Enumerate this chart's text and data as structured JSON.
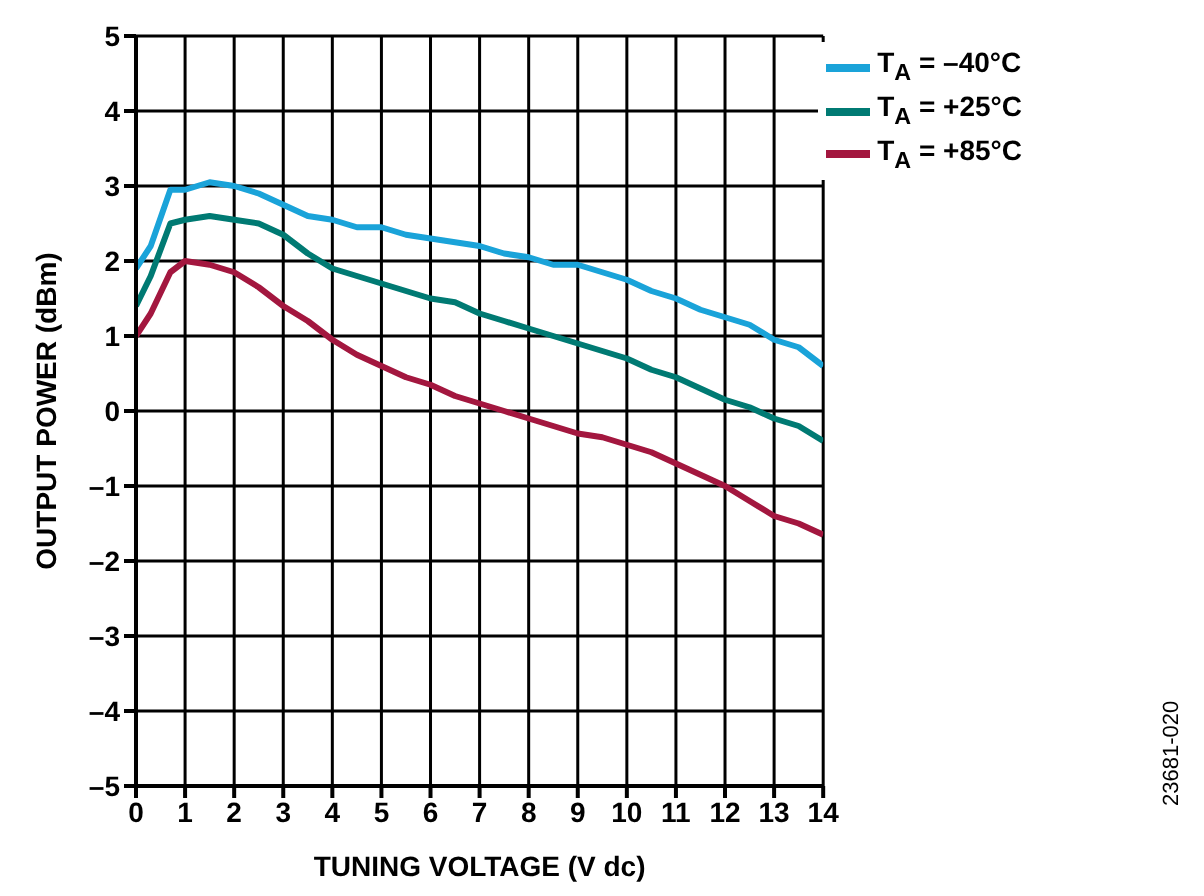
{
  "chart_data": {
    "type": "line",
    "xlabel": "TUNING VOLTAGE (V dc)",
    "ylabel": "OUTPUT POWER (dBm)",
    "x": [
      0,
      0.3,
      0.7,
      1,
      1.5,
      2,
      2.5,
      3,
      3.5,
      4,
      4.5,
      5,
      5.5,
      6,
      6.5,
      7,
      7.5,
      8,
      8.5,
      9,
      9.5,
      10,
      10.5,
      11,
      11.5,
      12,
      12.5,
      13,
      13.5,
      14
    ],
    "series": [
      {
        "name": "T$_{A}$ = –40°C",
        "color": "#1aa3d9",
        "values": [
          1.9,
          2.2,
          2.95,
          2.95,
          3.05,
          3.0,
          2.9,
          2.75,
          2.6,
          2.55,
          2.45,
          2.45,
          2.35,
          2.3,
          2.25,
          2.2,
          2.1,
          2.05,
          1.95,
          1.95,
          1.85,
          1.75,
          1.6,
          1.5,
          1.35,
          1.25,
          1.15,
          0.95,
          0.85,
          0.6
        ]
      },
      {
        "name": "T$_{A}$ = +25°C",
        "color": "#007a73",
        "values": [
          1.4,
          1.8,
          2.5,
          2.55,
          2.6,
          2.55,
          2.5,
          2.35,
          2.1,
          1.9,
          1.8,
          1.7,
          1.6,
          1.5,
          1.45,
          1.3,
          1.2,
          1.1,
          1.0,
          0.9,
          0.8,
          0.7,
          0.55,
          0.45,
          0.3,
          0.15,
          0.05,
          -0.1,
          -0.2,
          -0.4
        ]
      },
      {
        "name": "T$_{A}$ = +85°C",
        "color": "#a3173f",
        "values": [
          1.0,
          1.3,
          1.85,
          2.0,
          1.95,
          1.85,
          1.65,
          1.4,
          1.2,
          0.95,
          0.75,
          0.6,
          0.45,
          0.35,
          0.2,
          0.1,
          0.0,
          -0.1,
          -0.2,
          -0.3,
          -0.35,
          -0.45,
          -0.55,
          -0.7,
          -0.85,
          -1.0,
          -1.2,
          -1.4,
          -1.5,
          -1.65
        ]
      }
    ],
    "xlim": [
      0,
      14
    ],
    "xticks": [
      0,
      1,
      2,
      3,
      4,
      5,
      6,
      7,
      8,
      9,
      10,
      11,
      12,
      13,
      14
    ],
    "ylim": [
      -5,
      5
    ],
    "yticks": [
      {
        "value": -5,
        "label": "–5"
      },
      {
        "value": -4,
        "label": "–4"
      },
      {
        "value": -3,
        "label": "–3"
      },
      {
        "value": -2,
        "label": "–2"
      },
      {
        "value": -1,
        "label": "–1"
      },
      0,
      1,
      2,
      3,
      4,
      5
    ],
    "grid": true,
    "legend": "top right",
    "marker": "none",
    "line_style": "solid",
    "annotations": [
      "23681-020"
    ]
  }
}
